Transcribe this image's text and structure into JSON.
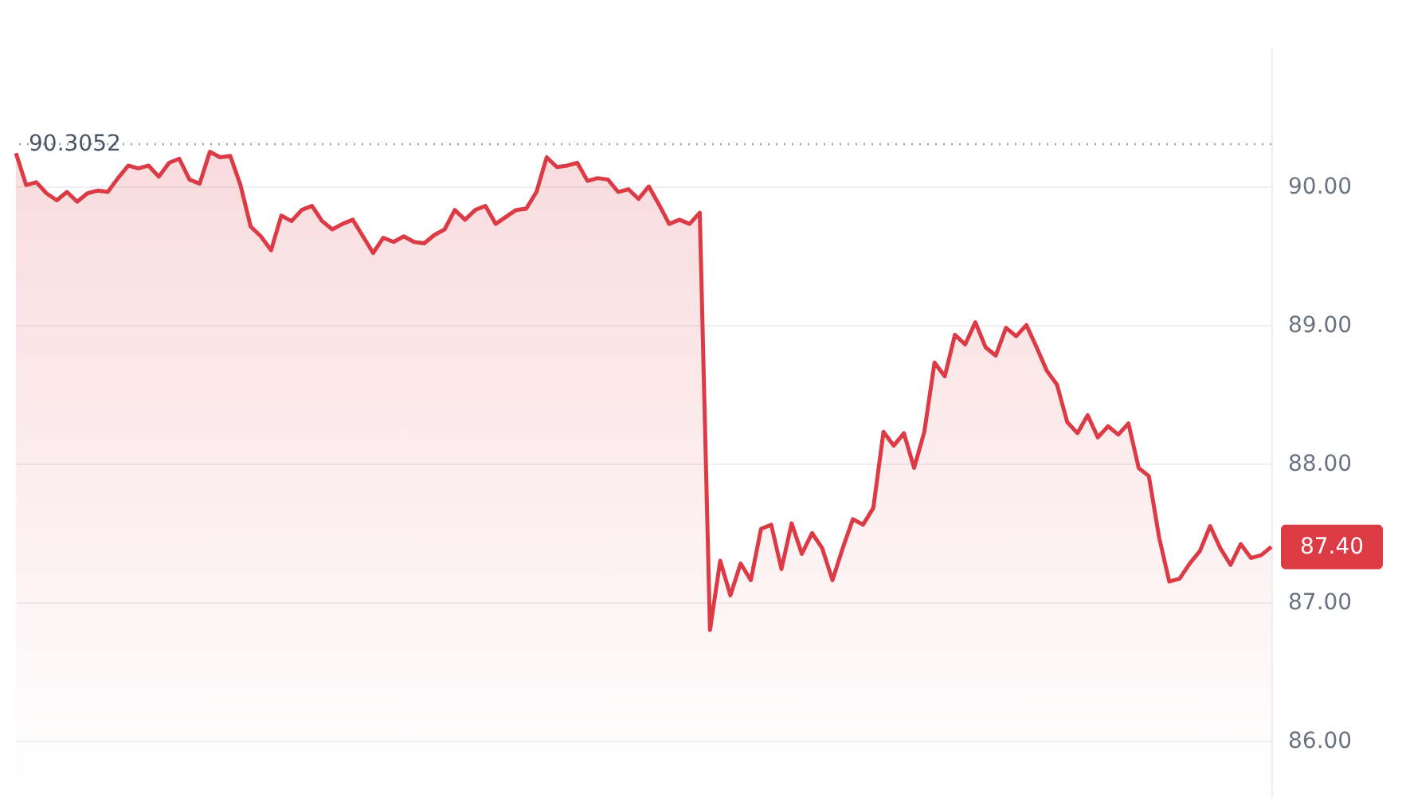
{
  "chart_data": {
    "type": "area",
    "categories": [
      null,
      null,
      null,
      null,
      null,
      null,
      null,
      null,
      null,
      null,
      null,
      null,
      null,
      null,
      null,
      null,
      null,
      null,
      null,
      null,
      null,
      null,
      null,
      null,
      null,
      null,
      null,
      null,
      null,
      null,
      null,
      null,
      null,
      null,
      null,
      null,
      null,
      null,
      null,
      null,
      null,
      null,
      null,
      null,
      null,
      null,
      null,
      null,
      null,
      null,
      null,
      null,
      null,
      null,
      null,
      null,
      null,
      null,
      null,
      null,
      null,
      null,
      null,
      null,
      null,
      null,
      null,
      null,
      null,
      null,
      null,
      null,
      null,
      null,
      null,
      null,
      null,
      null,
      null,
      null,
      null,
      null,
      null,
      null,
      null,
      null,
      null,
      null,
      null,
      null,
      null,
      null,
      null,
      null,
      null,
      null,
      null,
      null,
      null,
      null,
      null,
      null,
      null,
      null,
      null,
      null,
      null,
      null,
      null,
      null,
      null,
      null,
      null,
      null,
      null,
      null,
      null,
      null,
      null,
      null,
      null,
      null,
      null,
      null
    ],
    "series": [
      {
        "color": "#dc3a44",
        "values": [
          90.24,
          90.01,
          90.03,
          89.95,
          89.9,
          89.96,
          89.89,
          89.95,
          89.97,
          89.96,
          90.06,
          90.15,
          90.13,
          90.15,
          90.07,
          90.17,
          90.2,
          90.05,
          90.02,
          90.25,
          90.21,
          90.22,
          90.01,
          89.71,
          89.64,
          89.54,
          89.79,
          89.75,
          89.83,
          89.86,
          89.75,
          89.69,
          89.73,
          89.76,
          89.64,
          89.52,
          89.63,
          89.6,
          89.64,
          89.6,
          89.59,
          89.65,
          89.69,
          89.83,
          89.76,
          89.83,
          89.86,
          89.73,
          89.78,
          89.83,
          89.84,
          89.96,
          90.21,
          90.14,
          90.15,
          90.17,
          90.04,
          90.06,
          90.05,
          89.96,
          89.98,
          89.91,
          90.0,
          89.87,
          89.73,
          89.76,
          89.73,
          89.81,
          86.8,
          87.3,
          87.05,
          87.28,
          87.16,
          87.53,
          87.56,
          87.24,
          87.57,
          87.35,
          87.5,
          87.39,
          87.16,
          87.39,
          87.6,
          87.56,
          87.68,
          88.23,
          88.13,
          88.22,
          87.97,
          88.23,
          88.73,
          88.63,
          88.93,
          88.86,
          89.02,
          88.84,
          88.78,
          88.98,
          88.92,
          89.0,
          88.84,
          88.67,
          88.57,
          88.3,
          88.22,
          88.35,
          88.19,
          88.27,
          88.21,
          88.29,
          87.97,
          87.91,
          87.47,
          87.15,
          87.17,
          87.28,
          87.37,
          87.55,
          87.39,
          87.27,
          87.42,
          87.32,
          87.34,
          87.4
        ]
      }
    ],
    "ylim": [
      85.6,
      91.0
    ],
    "yticks": [
      {
        "value": 86,
        "label": "86.00"
      },
      {
        "value": 87,
        "label": "87.00"
      },
      {
        "value": 88,
        "label": "88.00"
      },
      {
        "value": 89,
        "label": "89.00"
      },
      {
        "value": 90,
        "label": "90.00"
      }
    ],
    "grid": "y",
    "tick_labels": "y",
    "ref_lines": [
      {
        "axis": "y",
        "value": 90.3052,
        "label": "90.3052",
        "color": "#9aa0a6",
        "line_style": "dotted"
      }
    ],
    "annotations": [
      "87.40"
    ]
  }
}
